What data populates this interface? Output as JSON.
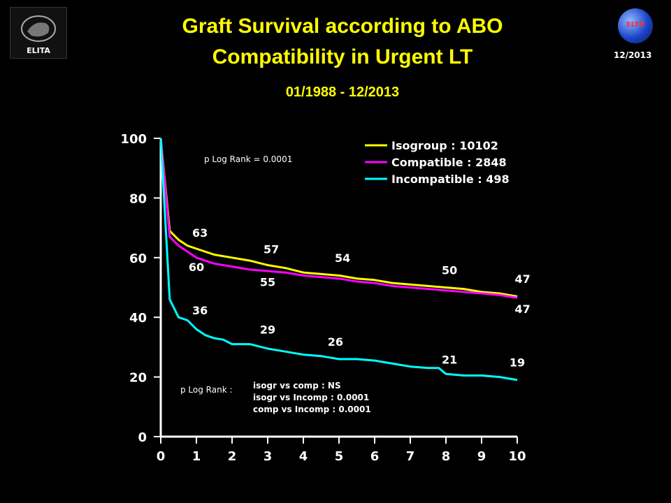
{
  "header": {
    "title_line1": "Graft Survival according to ABO",
    "title_line2": "Compatibility in Urgent LT",
    "subtitle": "01/1988 - 12/2013",
    "logo_left_text": "ELITA",
    "logo_right_text": "ELTR",
    "date": "12/2013"
  },
  "colors": {
    "background": "#000000",
    "title": "#ffff00",
    "axis": "#ffffff"
  },
  "chart_data": {
    "type": "line",
    "title": "",
    "xlabel": "",
    "ylabel": "",
    "xlim": [
      0,
      10
    ],
    "ylim": [
      0,
      100
    ],
    "x_ticks": [
      "0",
      "1",
      "2",
      "3",
      "4",
      "5",
      "6",
      "7",
      "8",
      "9",
      "10"
    ],
    "y_ticks": [
      "0",
      "20",
      "40",
      "60",
      "80",
      "100"
    ],
    "grid": false,
    "legend_position": "top-right",
    "series": [
      {
        "name": "Isogroup : 10102",
        "color": "#ffff00",
        "x": [
          0,
          0.25,
          0.5,
          0.75,
          1,
          1.5,
          2,
          2.5,
          3,
          3.5,
          4,
          4.5,
          5,
          5.5,
          6,
          6.5,
          7,
          7.5,
          8,
          8.5,
          9,
          9.5,
          10
        ],
        "y": [
          100,
          69,
          66,
          64,
          63,
          61,
          60,
          59,
          57.5,
          56.5,
          55,
          54.5,
          54,
          53,
          52.5,
          51.5,
          51,
          50.5,
          50,
          49.5,
          48.5,
          48,
          47
        ]
      },
      {
        "name": "Compatible : 2848",
        "color": "#ff00ff",
        "x": [
          0,
          0.25,
          0.5,
          0.75,
          1,
          1.5,
          2,
          2.5,
          3,
          3.5,
          4,
          4.5,
          5,
          5.5,
          6,
          6.5,
          7,
          7.5,
          8,
          8.5,
          9,
          9.5,
          10
        ],
        "y": [
          100,
          67,
          64,
          62,
          60,
          58,
          57,
          56,
          55.5,
          55,
          54,
          53.5,
          53,
          52,
          51.5,
          50.5,
          50,
          49.5,
          49,
          48.5,
          48,
          47.5,
          46.5
        ]
      },
      {
        "name": "Incompatible : 498",
        "color": "#00ffff",
        "x": [
          0,
          0.25,
          0.5,
          0.75,
          1,
          1.25,
          1.5,
          1.75,
          2,
          2.5,
          3,
          3.5,
          4,
          4.5,
          5,
          5.5,
          6,
          6.5,
          7,
          7.5,
          7.8,
          8,
          8.5,
          9,
          9.5,
          10
        ],
        "y": [
          100,
          46,
          40,
          39,
          36,
          34,
          33,
          32.5,
          31,
          31,
          29.5,
          28.5,
          27.5,
          27,
          26,
          26,
          25.5,
          24.5,
          23.5,
          23,
          23,
          21,
          20.5,
          20.5,
          20,
          19
        ]
      }
    ],
    "data_labels": [
      {
        "text": "63",
        "x": 1.1,
        "y": 67,
        "color": "#ffffff"
      },
      {
        "text": "60",
        "x": 1.0,
        "y": 55.5,
        "color": "#ffffff"
      },
      {
        "text": "36",
        "x": 1.1,
        "y": 41,
        "color": "#ffffff"
      },
      {
        "text": "57",
        "x": 3.1,
        "y": 61.5,
        "color": "#ffffff"
      },
      {
        "text": "55",
        "x": 3.0,
        "y": 50.5,
        "color": "#ffffff"
      },
      {
        "text": "29",
        "x": 3.0,
        "y": 34.5,
        "color": "#ffffff"
      },
      {
        "text": "54",
        "x": 5.1,
        "y": 58.5,
        "color": "#ffffff"
      },
      {
        "text": "26",
        "x": 4.9,
        "y": 30.5,
        "color": "#ffffff"
      },
      {
        "text": "50",
        "x": 8.1,
        "y": 54.5,
        "color": "#ffffff"
      },
      {
        "text": "21",
        "x": 8.1,
        "y": 24.5,
        "color": "#ffffff"
      },
      {
        "text": "47",
        "x": 10.15,
        "y": 51.5,
        "color": "#ffffff"
      },
      {
        "text": "47",
        "x": 10.15,
        "y": 41.5,
        "color": "#ffffff"
      },
      {
        "text": "19",
        "x": 10.0,
        "y": 23.5,
        "color": "#ffffff"
      }
    ],
    "annotations": {
      "p_top": "p Log Rank = 0.0001",
      "p_label": "p Log Rank :",
      "p_lines": [
        "isogr vs comp : NS",
        "isogr vs Incomp : 0.0001",
        "comp vs Incomp : 0.0001"
      ]
    }
  }
}
